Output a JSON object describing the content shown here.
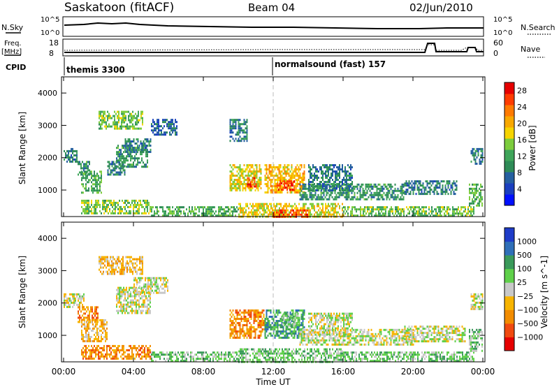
{
  "header": {
    "station": "Saskatoon (fitACF)",
    "beam": "Beam 04",
    "date": "02/Jun/2010"
  },
  "panels": {
    "nsky_label": "N.Sky",
    "nsky_ticks": [
      "10^5",
      "10^0"
    ],
    "nsearch_label": "N.Search",
    "nsearch_ticks": [
      "10^5",
      "10^0"
    ],
    "freq_label": "Freq.",
    "freq_unit": "[MHz]",
    "freq_ticks": [
      "18",
      "8"
    ],
    "nave_label": "Nave",
    "nave_ticks": [
      "60",
      "0"
    ],
    "cpid_label": "CPID",
    "cpid_modes": [
      "themis 3300",
      "normalsound (fast) 157"
    ]
  },
  "chart_data": [
    {
      "type": "heatmap",
      "name": "power",
      "xlabel": "",
      "ylabel": "Slant Range [km]",
      "x_ticks": [
        "00:00",
        "04:00",
        "08:00",
        "12:00",
        "16:00",
        "20:00",
        "00:00"
      ],
      "x_range_hours": [
        0,
        24
      ],
      "y_ticks": [
        1000,
        2000,
        3000,
        4000
      ],
      "ylim": [
        180,
        4500
      ],
      "colorbar": {
        "label": "Power [dB]",
        "ticks": [
          4,
          8,
          12,
          16,
          20,
          24,
          28
        ],
        "range": [
          0,
          30
        ],
        "colors": [
          "#0010ff",
          "#1a3fbf",
          "#255fa0",
          "#2e8b57",
          "#3fa55a",
          "#7ccc3d",
          "#f6d400",
          "#f8a800",
          "#ff7a00",
          "#ff3c00",
          "#e60000"
        ]
      },
      "regions": [
        {
          "t0": 0.0,
          "t1": 0.8,
          "r0": 1900,
          "r1": 2300,
          "v": 8
        },
        {
          "t0": 0.8,
          "t1": 1.5,
          "r0": 1500,
          "r1": 1900,
          "v": 10
        },
        {
          "t0": 1.0,
          "t1": 2.2,
          "r0": 900,
          "r1": 1600,
          "v": 12
        },
        {
          "t0": 2.0,
          "t1": 4.5,
          "r0": 2900,
          "r1": 3450,
          "v": 14
        },
        {
          "t0": 2.5,
          "t1": 3.5,
          "r0": 1500,
          "r1": 1900,
          "v": 8
        },
        {
          "t0": 3.0,
          "t1": 4.8,
          "r0": 1700,
          "r1": 2400,
          "v": 10
        },
        {
          "t0": 3.5,
          "t1": 5.0,
          "r0": 2200,
          "r1": 2600,
          "v": 8
        },
        {
          "t0": 5.0,
          "t1": 6.5,
          "r0": 2700,
          "r1": 3200,
          "v": 6
        },
        {
          "t0": 1.0,
          "t1": 5.0,
          "r0": 300,
          "r1": 700,
          "v": 14
        },
        {
          "t0": 5.0,
          "t1": 10.0,
          "r0": 200,
          "r1": 500,
          "v": 12
        },
        {
          "t0": 9.5,
          "t1": 11.3,
          "r0": 1000,
          "r1": 1800,
          "v": 18
        },
        {
          "t0": 10.5,
          "t1": 11.0,
          "r0": 1100,
          "r1": 1400,
          "v": 26
        },
        {
          "t0": 11.5,
          "t1": 13.8,
          "r0": 900,
          "r1": 1800,
          "v": 20
        },
        {
          "t0": 12.2,
          "t1": 13.2,
          "r0": 1000,
          "r1": 1300,
          "v": 28
        },
        {
          "t0": 13.5,
          "t1": 19.5,
          "r0": 700,
          "r1": 1200,
          "v": 10
        },
        {
          "t0": 10.0,
          "t1": 16.0,
          "r0": 200,
          "r1": 600,
          "v": 18
        },
        {
          "t0": 12.0,
          "t1": 14.0,
          "r0": 200,
          "r1": 400,
          "v": 26
        },
        {
          "t0": 16.0,
          "t1": 23.5,
          "r0": 200,
          "r1": 500,
          "v": 14
        },
        {
          "t0": 19.5,
          "t1": 22.5,
          "r0": 900,
          "r1": 1300,
          "v": 8
        },
        {
          "t0": 23.2,
          "t1": 24.0,
          "r0": 500,
          "r1": 1200,
          "v": 12
        },
        {
          "t0": 23.3,
          "t1": 24.0,
          "r0": 1800,
          "r1": 2300,
          "v": 8
        },
        {
          "t0": 9.5,
          "t1": 10.5,
          "r0": 2500,
          "r1": 3200,
          "v": 8
        },
        {
          "t0": 14.0,
          "t1": 16.5,
          "r0": 1000,
          "r1": 1800,
          "v": 8
        }
      ]
    },
    {
      "type": "heatmap",
      "name": "velocity",
      "xlabel": "Time UT",
      "ylabel": "Slant Range [km]",
      "x_ticks": [
        "00:00",
        "04:00",
        "08:00",
        "12:00",
        "16:00",
        "20:00",
        "00:00"
      ],
      "x_range_hours": [
        0,
        24
      ],
      "y_ticks": [
        1000,
        2000,
        3000,
        4000
      ],
      "ylim": [
        180,
        4500
      ],
      "colorbar": {
        "label": "Velocity [m s^-1]",
        "tick_labels": [
          "1000",
          "500",
          "100",
          "25",
          "−25",
          "−100",
          "−500",
          "−1000"
        ],
        "colors": [
          "#1e3cc8",
          "#2f6fb8",
          "#3a9a5a",
          "#5fd04a",
          "#c8c8c8",
          "#f7b400",
          "#f28c00",
          "#f04a10",
          "#e60000"
        ]
      },
      "regions": [
        {
          "t0": 0.0,
          "t1": 1.2,
          "r0": 1900,
          "r1": 2300,
          "c": 4
        },
        {
          "t0": 0.8,
          "t1": 2.0,
          "r0": 1400,
          "r1": 1900,
          "c": 6
        },
        {
          "t0": 1.0,
          "t1": 2.5,
          "r0": 800,
          "r1": 1500,
          "c": 5
        },
        {
          "t0": 2.0,
          "t1": 4.5,
          "r0": 2900,
          "r1": 3450,
          "c": 5
        },
        {
          "t0": 3.0,
          "t1": 5.0,
          "r0": 1700,
          "r1": 2500,
          "c": 4
        },
        {
          "t0": 4.0,
          "t1": 6.0,
          "r0": 2300,
          "r1": 2800,
          "c": 4
        },
        {
          "t0": 1.0,
          "t1": 5.0,
          "r0": 300,
          "r1": 700,
          "c": 6
        },
        {
          "t0": 5.0,
          "t1": 10.0,
          "r0": 200,
          "r1": 500,
          "c": 3
        },
        {
          "t0": 9.5,
          "t1": 11.5,
          "r0": 900,
          "r1": 1800,
          "c": 6
        },
        {
          "t0": 11.5,
          "t1": 13.8,
          "r0": 900,
          "r1": 1800,
          "c": 2
        },
        {
          "t0": 12.5,
          "t1": 13.5,
          "r0": 1300,
          "r1": 1700,
          "c": 3
        },
        {
          "t0": 13.5,
          "t1": 20.0,
          "r0": 700,
          "r1": 1200,
          "c": 4
        },
        {
          "t0": 10.0,
          "t1": 16.0,
          "r0": 200,
          "r1": 600,
          "c": 3
        },
        {
          "t0": 16.0,
          "t1": 23.5,
          "r0": 200,
          "r1": 500,
          "c": 3
        },
        {
          "t0": 19.5,
          "t1": 23.0,
          "r0": 800,
          "r1": 1300,
          "c": 4
        },
        {
          "t0": 23.2,
          "t1": 24.0,
          "r0": 500,
          "r1": 1200,
          "c": 3
        },
        {
          "t0": 23.3,
          "t1": 24.0,
          "r0": 1800,
          "r1": 2300,
          "c": 4
        },
        {
          "t0": 14.0,
          "t1": 16.5,
          "r0": 1000,
          "r1": 1700,
          "c": 4
        }
      ]
    }
  ]
}
